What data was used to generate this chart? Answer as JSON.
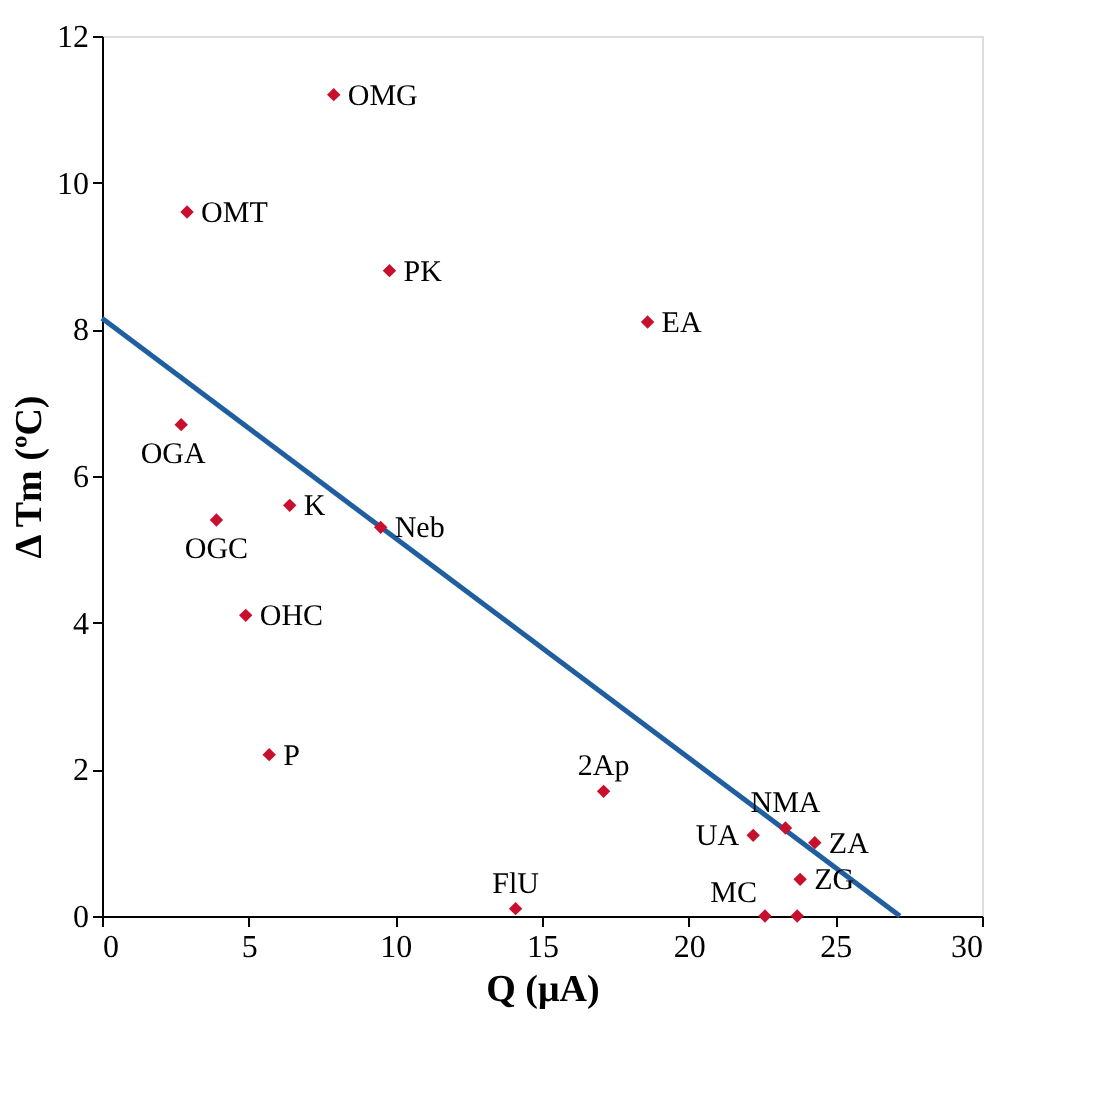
{
  "chart_data": {
    "type": "scatter",
    "xlabel": "Q (μA)",
    "ylabel": "Δ Tm (ºC)",
    "xlim": [
      0,
      30
    ],
    "ylim": [
      0,
      12
    ],
    "xticks": [
      0,
      5,
      10,
      15,
      20,
      25,
      30
    ],
    "yticks": [
      0,
      2,
      4,
      6,
      8,
      10,
      12
    ],
    "grid": false,
    "series": [
      {
        "type": "line",
        "marker": "none",
        "color": "#1f5fa0",
        "x": [
          0,
          27.2
        ],
        "values": [
          8.15,
          0
        ]
      },
      {
        "marker": "diamond",
        "color": "#c8102e",
        "x": [
          7.9,
          2.9,
          9.8,
          18.6,
          2.7,
          3.9,
          6.4,
          9.5,
          4.9,
          5.7,
          17.1,
          14.1,
          22.2,
          23.3,
          24.3,
          23.8,
          22.6,
          23.7
        ],
        "values": [
          11.2,
          9.6,
          8.8,
          8.1,
          6.7,
          5.4,
          5.6,
          5.3,
          4.1,
          2.2,
          1.7,
          0.1,
          1.1,
          1.2,
          1.0,
          0.5,
          0,
          0
        ]
      }
    ],
    "annotations": [
      {
        "text": "OMG",
        "x": 7.9,
        "y": 11.2
      },
      {
        "text": "OMT",
        "x": 2.9,
        "y": 9.6
      },
      {
        "text": "PK",
        "x": 9.8,
        "y": 8.8
      },
      {
        "text": "EA",
        "x": 18.6,
        "y": 8.1
      },
      {
        "text": "OGA",
        "x": 2.7,
        "y": 6.7
      },
      {
        "text": "OGC",
        "x": 3.9,
        "y": 5.4
      },
      {
        "text": "K",
        "x": 6.4,
        "y": 5.6
      },
      {
        "text": "Neb",
        "x": 9.5,
        "y": 5.3
      },
      {
        "text": "OHC",
        "x": 4.9,
        "y": 4.1
      },
      {
        "text": "P",
        "x": 5.7,
        "y": 2.2
      },
      {
        "text": "2Ap",
        "x": 17.1,
        "y": 1.7
      },
      {
        "text": "FlU",
        "x": 14.1,
        "y": 0.1
      },
      {
        "text": "UA",
        "x": 22.2,
        "y": 1.1
      },
      {
        "text": "NMA",
        "x": 23.3,
        "y": 1.2
      },
      {
        "text": "ZA",
        "x": 24.3,
        "y": 1.0
      },
      {
        "text": "ZG",
        "x": 23.8,
        "y": 0.5
      },
      {
        "text": "MC",
        "x": 22.6,
        "y": 0
      }
    ]
  }
}
